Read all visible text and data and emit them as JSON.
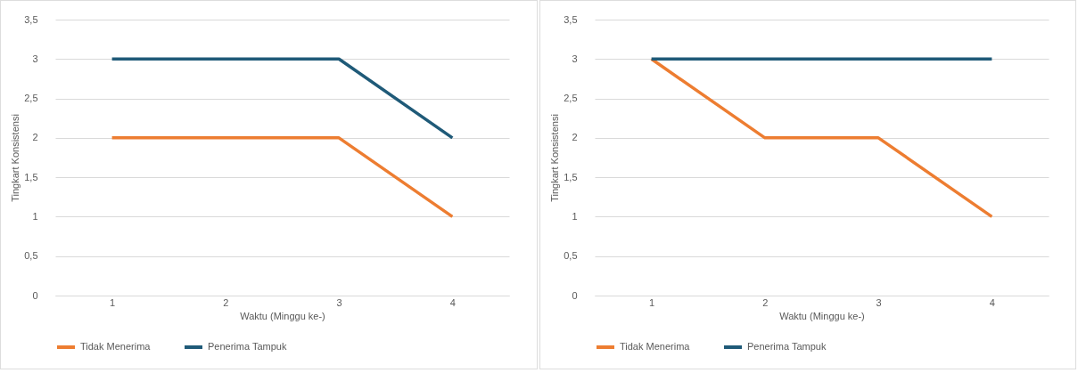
{
  "chart_data": [
    {
      "type": "line",
      "xlabel": "Waktu (Minggu ke-)",
      "ylabel": "Tingkart Konsistensi",
      "categories": [
        "1",
        "2",
        "3",
        "4"
      ],
      "series": [
        {
          "name": "Tidak Menerima",
          "color": "#ed7d31",
          "values": [
            2,
            2,
            2,
            1
          ]
        },
        {
          "name": "Penerima Tampuk",
          "color": "#1f5a78",
          "values": [
            3,
            3,
            3,
            2
          ]
        }
      ],
      "ylim": [
        0,
        3.5
      ],
      "yticks": [
        0,
        {
          "value": 0.5,
          "label": "0,5"
        },
        1,
        {
          "value": 1.5,
          "label": "1,5"
        },
        2,
        {
          "value": 2.5,
          "label": "2,5"
        },
        3,
        {
          "value": 3.5,
          "label": "3,5"
        }
      ],
      "grid": "y",
      "legend": "bottom",
      "marker": "none",
      "line_style": "solid"
    },
    {
      "type": "line",
      "xlabel": "Waktu (Minggu ke-)",
      "ylabel": "Tingkart Konsistensi",
      "categories": [
        "1",
        "2",
        "3",
        "4"
      ],
      "series": [
        {
          "name": "Tidak Menerima",
          "color": "#ed7d31",
          "values": [
            3,
            2,
            2,
            1
          ]
        },
        {
          "name": "Penerima Tampuk",
          "color": "#1f5a78",
          "values": [
            3,
            3,
            3,
            3
          ]
        }
      ],
      "ylim": [
        0,
        3.5
      ],
      "yticks": [
        0,
        {
          "value": 0.5,
          "label": "0,5"
        },
        1,
        {
          "value": 1.5,
          "label": "1,5"
        },
        2,
        {
          "value": 2.5,
          "label": "2,5"
        },
        3,
        {
          "value": 3.5,
          "label": "3,5"
        }
      ],
      "grid": "y",
      "legend": "bottom",
      "marker": "none",
      "line_style": "solid"
    }
  ]
}
